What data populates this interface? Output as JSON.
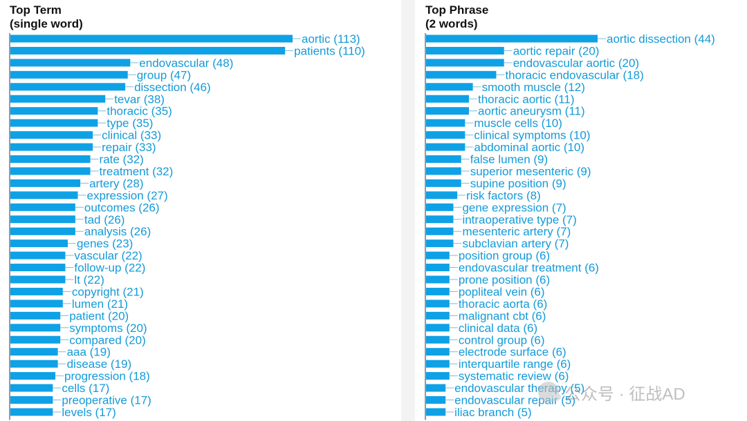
{
  "colors": {
    "bar": "#0ea1e6",
    "label": "#139ad8",
    "axis": "#333333"
  },
  "chart_data": [
    {
      "type": "bar",
      "orientation": "horizontal",
      "title_lines": [
        "Top Term",
        "(single word)"
      ],
      "categories": [
        "aortic (113)",
        "patients (110)",
        "endovascular (48)",
        "group (47)",
        "dissection (46)",
        "tevar (38)",
        "thoracic (35)",
        "type (35)",
        "clinical (33)",
        "repair (33)",
        "rate (32)",
        "treatment (32)",
        "artery (28)",
        "expression (27)",
        "outcomes (26)",
        "tad (26)",
        "analysis (26)",
        "genes (23)",
        "vascular (22)",
        "follow-up (22)",
        "lt (22)",
        "copyright (21)",
        "lumen (21)",
        "patient (20)",
        "symptoms (20)",
        "compared (20)",
        "aaa (19)",
        "disease (19)",
        "progression (18)",
        "cells (17)",
        "preoperative (17)",
        "levels (17)"
      ],
      "values": [
        113,
        110,
        48,
        47,
        46,
        38,
        35,
        35,
        33,
        33,
        32,
        32,
        28,
        27,
        26,
        26,
        26,
        23,
        22,
        22,
        22,
        21,
        21,
        20,
        20,
        20,
        19,
        19,
        18,
        17,
        17,
        17
      ]
    },
    {
      "type": "bar",
      "orientation": "horizontal",
      "title_lines": [
        "Top Phrase",
        "(2 words)"
      ],
      "categories": [
        "aortic dissection (44)",
        "aortic repair (20)",
        "endovascular aortic (20)",
        "thoracic endovascular (18)",
        "smooth muscle (12)",
        "thoracic aortic (11)",
        "aortic aneurysm (11)",
        "muscle cells (10)",
        "clinical symptoms (10)",
        "abdominal aortic (10)",
        "false lumen (9)",
        "superior mesenteric (9)",
        "supine position (9)",
        "risk factors (8)",
        "gene expression (7)",
        "intraoperative type (7)",
        "mesenteric artery (7)",
        "subclavian artery (7)",
        "position group (6)",
        "endovascular treatment (6)",
        "prone position (6)",
        "popliteal vein (6)",
        "thoracic aorta (6)",
        "malignant cbt (6)",
        "clinical data (6)",
        "control group (6)",
        "electrode surface (6)",
        "interquartile range (6)",
        "systematic review (6)",
        "endovascular therapy (5)",
        "endovascular repair (5)",
        "iliac branch (5)"
      ],
      "values": [
        44,
        20,
        20,
        18,
        12,
        11,
        11,
        10,
        10,
        10,
        9,
        9,
        9,
        8,
        7,
        7,
        7,
        7,
        6,
        6,
        6,
        6,
        6,
        6,
        6,
        6,
        6,
        6,
        6,
        5,
        5,
        5
      ]
    }
  ],
  "watermark": "公众号 · 征战AD"
}
